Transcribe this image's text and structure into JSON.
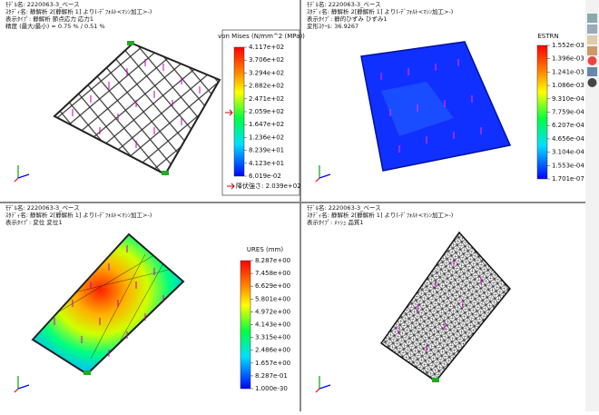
{
  "panels": [
    {
      "info": [
        "ﾓﾃﾞﾙ名: 2220063-3_ベース",
        "ｽﾀﾃﾞｨ名: 静解析 2[静解析 1] より(-ﾃﾞﾌｫﾙﾄ<ﾏｼﾝ加工>-)",
        "表示ﾀｲﾌﾟ: 静解析 節点応力 応力1",
        "精度 (最大/最小) = 0.75 % / 0.51 %"
      ],
      "legend": {
        "title": "von Mises (N/mm^2 (MPa))",
        "labels": [
          "4.117e+02",
          "3.706e+02",
          "3.294e+02",
          "2.882e+02",
          "2.471e+02",
          "2.059e+02",
          "1.647e+02",
          "1.236e+02",
          "8.239e+01",
          "4.123e+01",
          "6.019e-02"
        ],
        "yield": "降伏強さ: 2.039e+02"
      }
    },
    {
      "info": [
        "ﾓﾃﾞﾙ名: 2220063-3_ベース",
        "ｽﾀﾃﾞｨ名: 静解析 2[静解析 1] より(-ﾃﾞﾌｫﾙﾄ<ﾏｼﾝ加工>-)",
        "表示ﾀｲﾌﾟ: 静的ひずみ ひずみ1",
        "変形ｽｹｰﾙ: 36.9267"
      ],
      "legend": {
        "title": "ESTRN",
        "labels": [
          "1.552e-03",
          "1.396e-03",
          "1.241e-03",
          "1.086e-03",
          "9.310e-04",
          "7.759e-04",
          "6.207e-04",
          "4.656e-04",
          "3.104e-04",
          "1.553e-04",
          "1.701e-07"
        ]
      }
    },
    {
      "info": [
        "ﾓﾃﾞﾙ名: 2220063-3_ベース",
        "ｽﾀﾃﾞｨ名: 静解析 2[静解析 1] より(-ﾃﾞﾌｫﾙﾄ<ﾏｼﾝ加工>-)",
        "表示ﾀｲﾌﾟ: 変位 変位1"
      ],
      "legend": {
        "title": "URES (mm)",
        "labels": [
          "8.287e+00",
          "7.458e+00",
          "6.629e+00",
          "5.801e+00",
          "4.972e+00",
          "4.143e+00",
          "3.315e+00",
          "2.486e+00",
          "1.657e+00",
          "8.287e-01",
          "1.000e-30"
        ]
      }
    },
    {
      "info": [
        "ﾓﾃﾞﾙ名: 2220063-3_ベース",
        "ｽﾀﾃﾞｨ名: 静解析 2[静解析 1] より(-ﾃﾞﾌｫﾙﾄ<ﾏｼﾝ加工>-)",
        "表示ﾀｲﾌﾟ: ﾒｯｼｭ 品質1"
      ]
    }
  ]
}
